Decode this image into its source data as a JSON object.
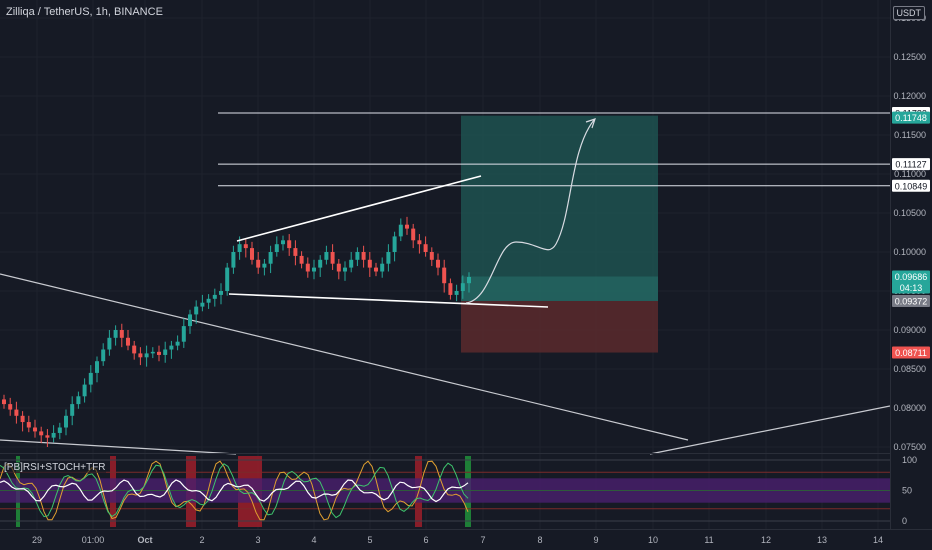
{
  "header": {
    "symbol_title": "Zilliqa / TetherUS, 1h, BINANCE",
    "currency": "USDT",
    "indicator_label": "[PB]RSI+STOCH+TFR"
  },
  "colors": {
    "background": "#161a25",
    "grid": "#1e222d",
    "candle_up": "#26a69a",
    "candle_down": "#ef5350",
    "target_zone": "#1f5a55",
    "stop_zone": "#5a2a2d",
    "rsi_band": "#4a1f6e",
    "axis_text": "#b2b5be"
  },
  "price_axis": {
    "ticks": [
      "0.13000",
      "0.12500",
      "0.12000",
      "0.11500",
      "0.11000",
      "0.10500",
      "0.10000",
      "0.09500",
      "0.09000",
      "0.08500",
      "0.08000",
      "0.07500"
    ]
  },
  "price_labels": [
    {
      "name": "level-0-11782",
      "value": "0.11782",
      "bg": "#ffffff",
      "fg": "#131722"
    },
    {
      "name": "target-0-11748",
      "value": "0.11748",
      "bg": "#26a69a",
      "fg": "#ffffff"
    },
    {
      "name": "level-0-11127",
      "value": "0.11127",
      "bg": "#ffffff",
      "fg": "#131722"
    },
    {
      "name": "level-0-10849",
      "value": "0.10849",
      "bg": "#ffffff",
      "fg": "#131722"
    },
    {
      "name": "last-price",
      "value": "0.09686",
      "bg": "#26a69a",
      "fg": "#ffffff"
    },
    {
      "name": "countdown",
      "value": "04:13",
      "bg": "#26a69a",
      "fg": "#ffffff"
    },
    {
      "name": "entry-0-09372",
      "value": "0.09372",
      "bg": "#787b86",
      "fg": "#ffffff"
    },
    {
      "name": "stop-0-08711",
      "value": "0.08711",
      "bg": "#ef5350",
      "fg": "#ffffff"
    }
  ],
  "indicator_axis": {
    "ticks": [
      "100",
      "50",
      "0"
    ]
  },
  "time_axis": {
    "labels": [
      "29",
      "01:00",
      "Oct",
      "2",
      "3",
      "4",
      "5",
      "6",
      "7",
      "8",
      "9",
      "10",
      "11",
      "12",
      "13",
      "14"
    ]
  },
  "chart_data": {
    "type": "candlestick",
    "symbol": "ZILUSDT",
    "interval": "1h",
    "exchange": "BINANCE",
    "ylim": [
      0.0735,
      0.131
    ],
    "horizontal_levels": [
      0.11782,
      0.11127,
      0.10849
    ],
    "position": {
      "entry": 0.09372,
      "target": 0.11748,
      "stop": 0.08711
    },
    "last_price": 0.09686,
    "approx_closes": [
      0.0805,
      0.0798,
      0.079,
      0.0782,
      0.0775,
      0.077,
      0.0765,
      0.0762,
      0.0768,
      0.0775,
      0.079,
      0.0805,
      0.0815,
      0.083,
      0.0845,
      0.086,
      0.0875,
      0.089,
      0.09,
      0.089,
      0.088,
      0.087,
      0.0865,
      0.087,
      0.0872,
      0.0868,
      0.0875,
      0.088,
      0.0885,
      0.0905,
      0.092,
      0.093,
      0.0935,
      0.094,
      0.0945,
      0.095,
      0.098,
      0.1,
      0.101,
      0.1005,
      0.099,
      0.098,
      0.0985,
      0.1,
      0.101,
      0.1015,
      0.1005,
      0.0995,
      0.0985,
      0.0975,
      0.098,
      0.099,
      0.1,
      0.0985,
      0.0975,
      0.098,
      0.099,
      0.1,
      0.099,
      0.098,
      0.0975,
      0.0985,
      0.1,
      0.102,
      0.1035,
      0.103,
      0.1015,
      0.101,
      0.1,
      0.099,
      0.098,
      0.096,
      0.0945,
      0.095,
      0.096,
      0.0968
    ]
  },
  "indicator_data": {
    "name": "[PB]RSI+STOCH+TFR",
    "band": [
      30,
      70
    ],
    "levels": [
      100,
      80,
      50,
      20,
      0
    ]
  }
}
